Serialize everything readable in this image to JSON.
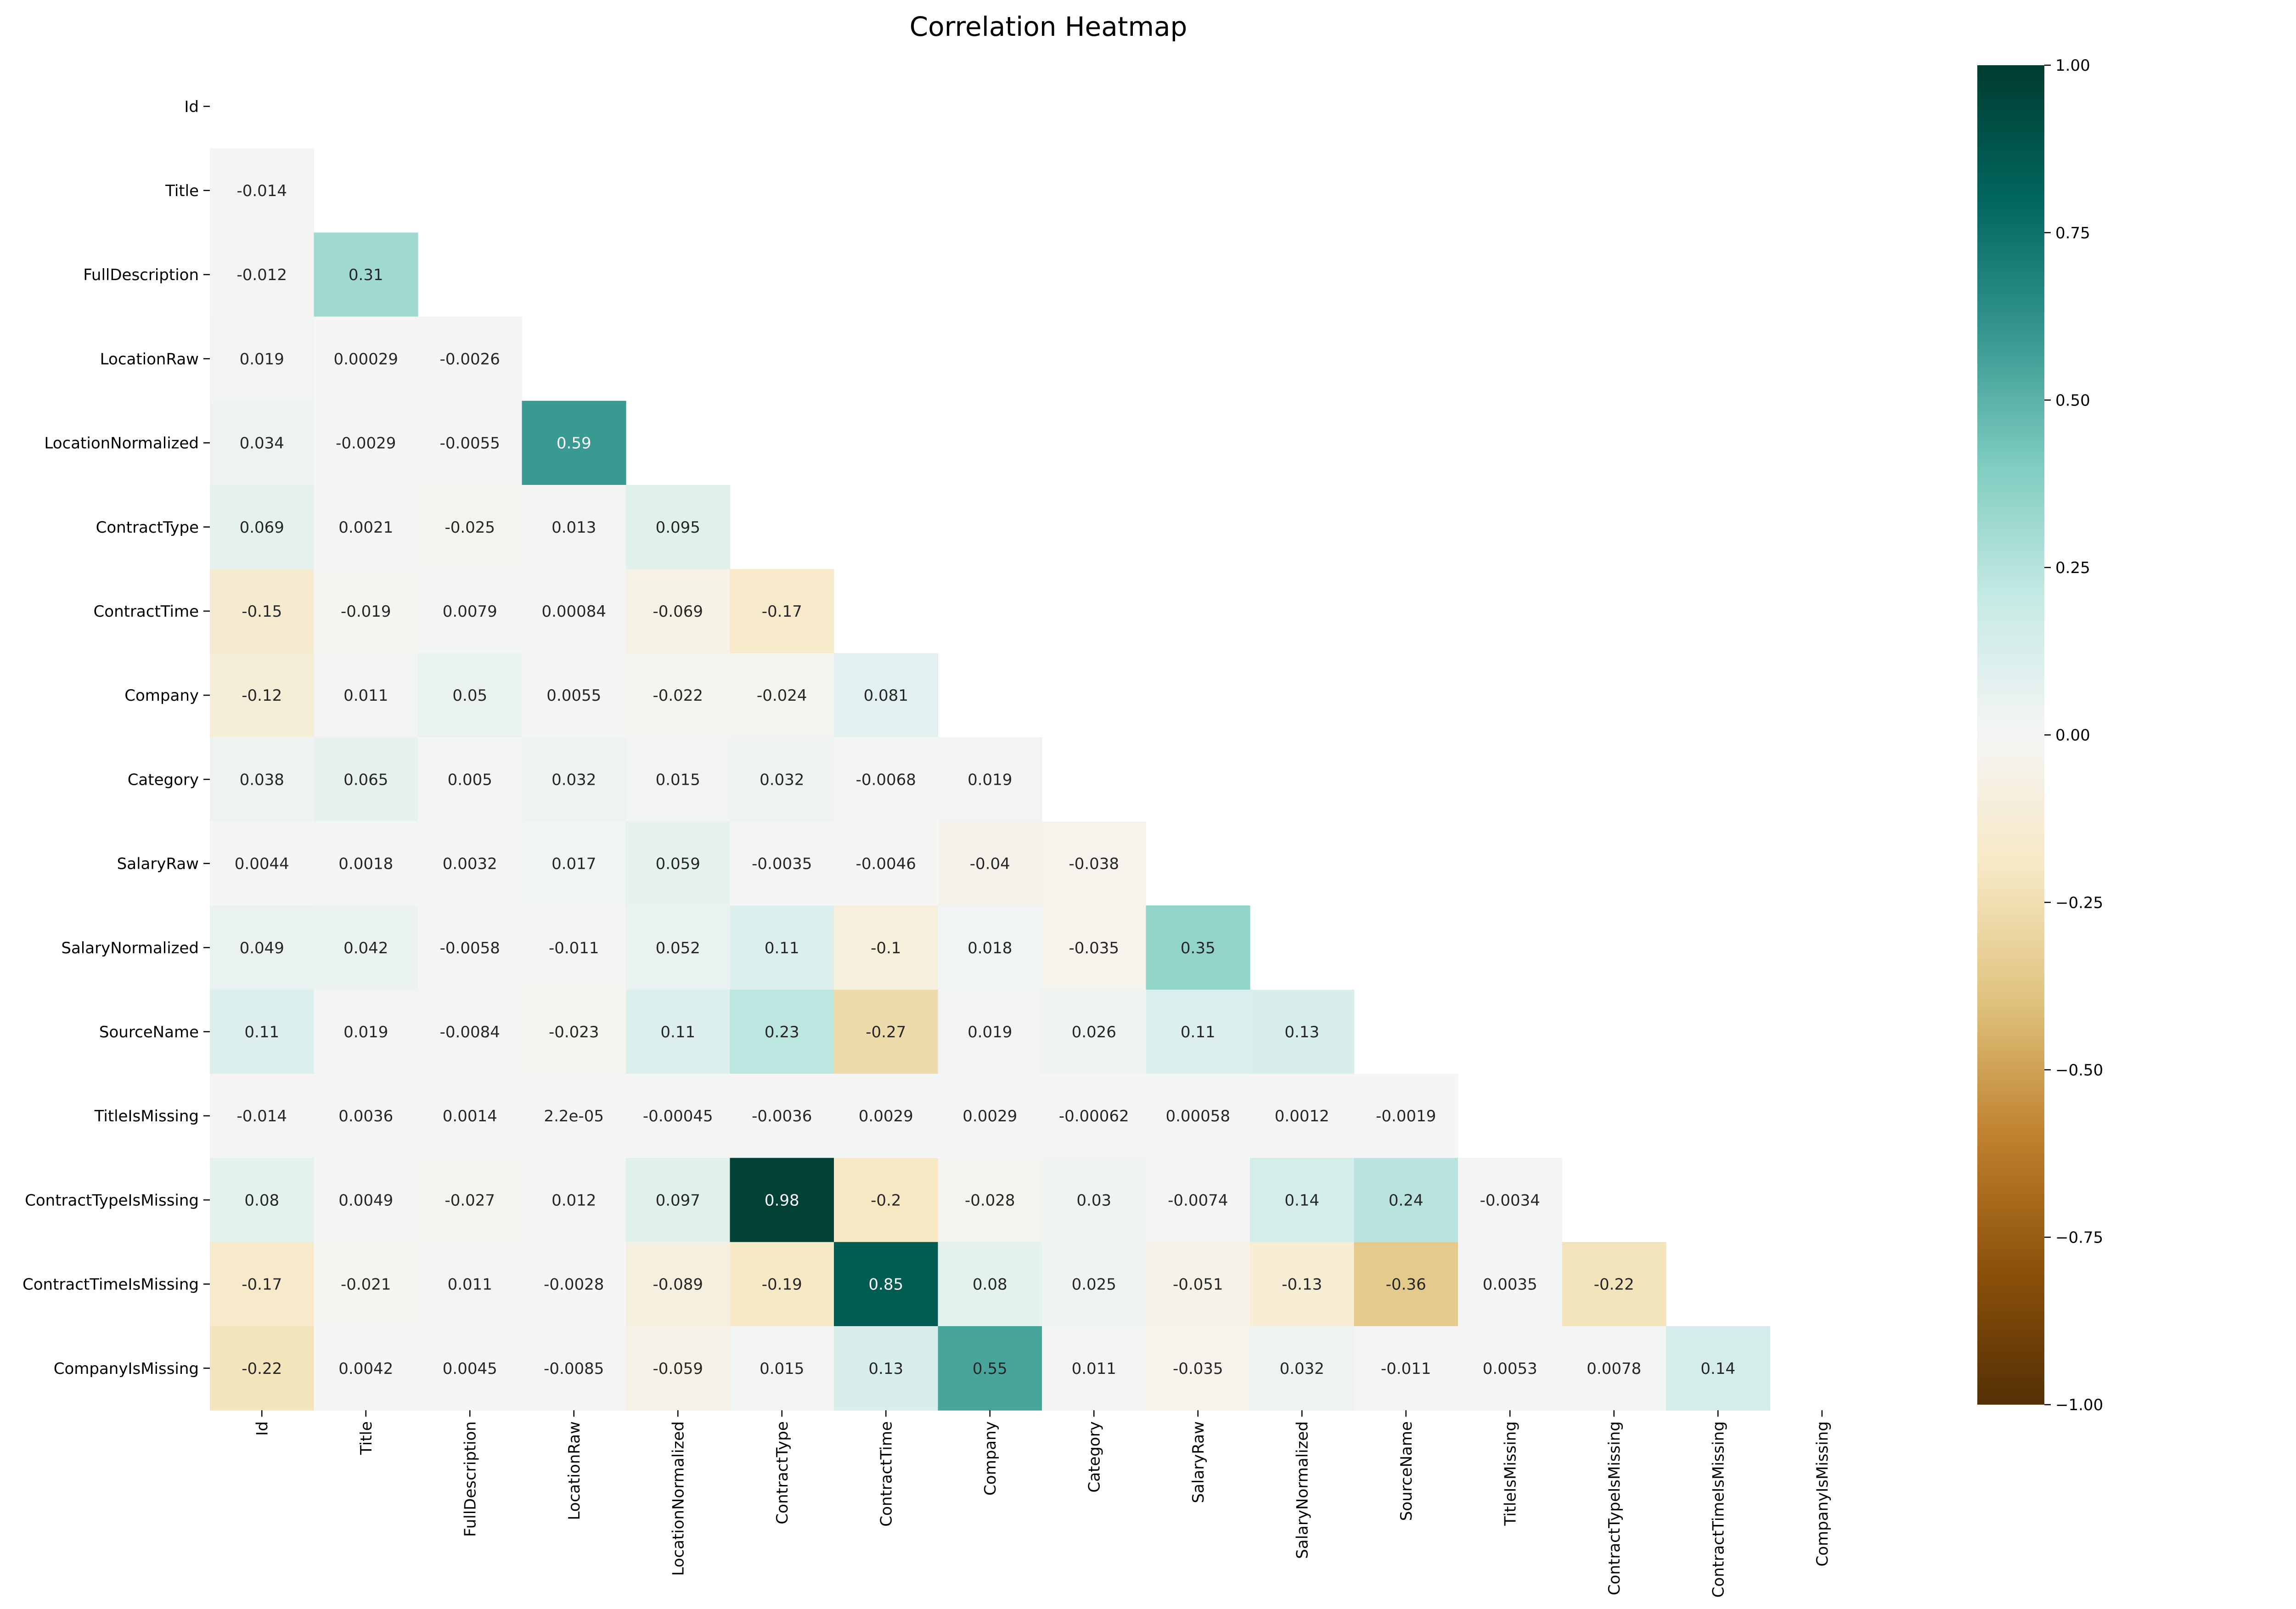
{
  "chart_data": {
    "type": "heatmap",
    "title": "Correlation Heatmap",
    "mask": "upper-triangle-including-diagonal",
    "variables": [
      "Id",
      "Title",
      "FullDescription",
      "LocationRaw",
      "LocationNormalized",
      "ContractType",
      "ContractTime",
      "Company",
      "Category",
      "SalaryRaw",
      "SalaryNormalized",
      "SourceName",
      "TitleIsMissing",
      "ContractTypeIsMissing",
      "ContractTimeIsMissing",
      "CompanyIsMissing"
    ],
    "values": [
      [],
      [
        "-0.014"
      ],
      [
        "-0.012",
        "0.31"
      ],
      [
        "0.019",
        "0.00029",
        "-0.0026"
      ],
      [
        "0.034",
        "-0.0029",
        "-0.0055",
        "0.59"
      ],
      [
        "0.069",
        "0.0021",
        "-0.025",
        "0.013",
        "0.095"
      ],
      [
        "-0.15",
        "-0.019",
        "0.0079",
        "0.00084",
        "-0.069",
        "-0.17"
      ],
      [
        "-0.12",
        "0.011",
        "0.05",
        "0.0055",
        "-0.022",
        "-0.024",
        "0.081"
      ],
      [
        "0.038",
        "0.065",
        "0.005",
        "0.032",
        "0.015",
        "0.032",
        "-0.0068",
        "0.019"
      ],
      [
        "0.0044",
        "0.0018",
        "0.0032",
        "0.017",
        "0.059",
        "-0.0035",
        "-0.0046",
        "-0.04",
        "-0.038"
      ],
      [
        "0.049",
        "0.042",
        "-0.0058",
        "-0.011",
        "0.052",
        "0.11",
        "-0.1",
        "0.018",
        "-0.035",
        "0.35"
      ],
      [
        "0.11",
        "0.019",
        "-0.0084",
        "-0.023",
        "0.11",
        "0.23",
        "-0.27",
        "0.019",
        "0.026",
        "0.11",
        "0.13"
      ],
      [
        "-0.014",
        "0.0036",
        "0.0014",
        "2.2e-05",
        "-0.00045",
        "-0.0036",
        "0.0029",
        "0.0029",
        "-0.00062",
        "0.00058",
        "0.0012",
        "-0.0019"
      ],
      [
        "0.08",
        "0.0049",
        "-0.027",
        "0.012",
        "0.097",
        "0.98",
        "-0.2",
        "-0.028",
        "0.03",
        "-0.0074",
        "0.14",
        "0.24",
        "-0.0034"
      ],
      [
        "-0.17",
        "-0.021",
        "0.011",
        "-0.0028",
        "-0.089",
        "-0.19",
        "0.85",
        "0.08",
        "0.025",
        "-0.051",
        "-0.13",
        "-0.36",
        "0.0035",
        "-0.22"
      ],
      [
        "-0.22",
        "0.0042",
        "0.0045",
        "-0.0085",
        "-0.059",
        "0.015",
        "0.13",
        "0.55",
        "0.011",
        "-0.035",
        "0.032",
        "-0.011",
        "0.0053",
        "0.0078",
        "0.14"
      ]
    ],
    "colorscale": {
      "name": "BrBG",
      "range": [
        -1,
        1
      ],
      "stops": [
        "#543005",
        "#8c510a",
        "#bf812d",
        "#dfc27d",
        "#f6e8c3",
        "#f5f5f5",
        "#c7eae5",
        "#80cdc1",
        "#35978f",
        "#01665e",
        "#003c30"
      ]
    },
    "colorbar": {
      "ticks": [
        "1.00",
        "0.75",
        "0.50",
        "0.25",
        "0.00",
        "−0.25",
        "−0.50",
        "−0.75",
        "−1.00"
      ],
      "tick_values": [
        1,
        0.75,
        0.5,
        0.25,
        0,
        -0.25,
        -0.5,
        -0.75,
        -1
      ]
    }
  }
}
